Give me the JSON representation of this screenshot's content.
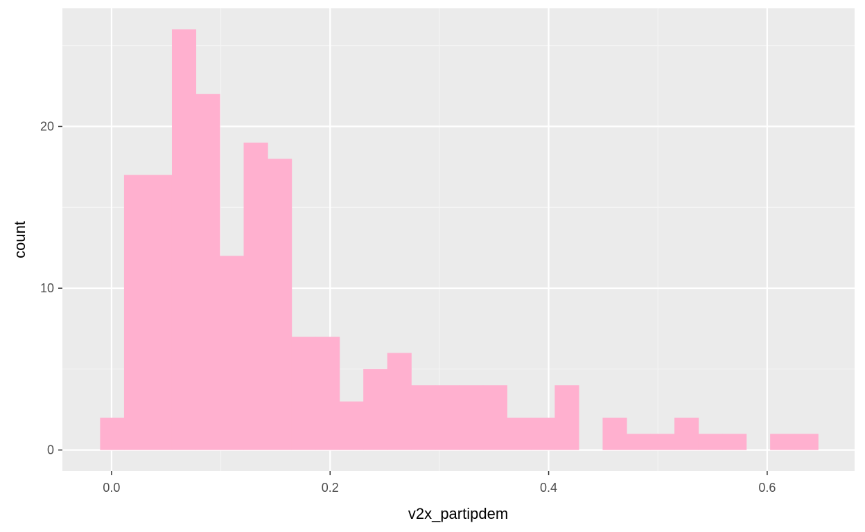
{
  "colors": {
    "panel_background": "#ebebeb",
    "grid_major": "#ffffff",
    "grid_minor": "#f5f5f5",
    "bar_fill": "#ffb0cf",
    "tick_mark": "#333333"
  },
  "chart_data": {
    "type": "bar",
    "subtype": "histogram",
    "xlabel": "v2x_partipdem",
    "ylabel": "count",
    "xlim": [
      -0.045,
      0.68
    ],
    "ylim": [
      -1.3,
      27.3
    ],
    "x_ticks": [
      0.0,
      0.2,
      0.4,
      0.6
    ],
    "x_tick_labels": [
      "0.0",
      "0.2",
      "0.4",
      "0.6"
    ],
    "y_ticks": [
      0,
      10,
      20
    ],
    "y_tick_labels": [
      "0",
      "10",
      "20"
    ],
    "grid": true,
    "bin_start": -0.0105,
    "bin_width": 0.0219,
    "counts": [
      2,
      17,
      17,
      26,
      22,
      12,
      19,
      18,
      7,
      7,
      3,
      5,
      6,
      4,
      4,
      4,
      4,
      2,
      2,
      4,
      0,
      2,
      1,
      1,
      2,
      1,
      1,
      0,
      1,
      1
    ]
  }
}
